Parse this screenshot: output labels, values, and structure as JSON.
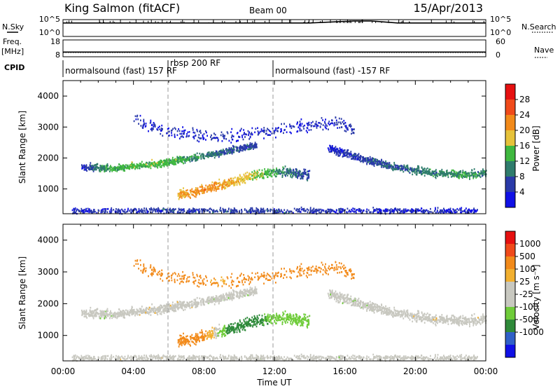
{
  "header": {
    "station": "King Salmon (fitACF)",
    "beam": "Beam 00",
    "date": "15/Apr/2013"
  },
  "strip_labels": {
    "nsky": "N.Sky",
    "nsearch": "N.Search",
    "freq_line1": "Freq.",
    "freq_line2": "[MHz]",
    "nave": "Nave",
    "cpid": "CPID"
  },
  "strip_ticks": {
    "noise_top_left": "10^5",
    "noise_bottom_left": "10^0",
    "noise_top_right": "10^5",
    "noise_bottom_right": "10^0",
    "freq_top": "18",
    "freq_bottom": "8",
    "nave_top": "60",
    "nave_bottom": "0"
  },
  "cpid_segments": [
    {
      "label": "normalsound (fast) 157 RF"
    },
    {
      "label": "rbsp 200 RF"
    },
    {
      "label": "normalsound (fast) -157 RF"
    }
  ],
  "time_axis": {
    "title": "Time UT",
    "ticks": [
      "00:00",
      "04:00",
      "08:00",
      "12:00",
      "16:00",
      "20:00",
      "00:00"
    ]
  },
  "range_axis": {
    "title": "Slant Range [km]",
    "ticks": [
      "1000",
      "2000",
      "3000",
      "4000"
    ]
  },
  "power_colorbar": {
    "title": "Power [dB]",
    "labels": [
      "4",
      "8",
      "12",
      "16",
      "20",
      "24",
      "28"
    ],
    "colors": [
      "#1010e6",
      "#2a3aa8",
      "#2f7c6c",
      "#3fb83f",
      "#e6c23a",
      "#f28a1a",
      "#f04a1a",
      "#e61010"
    ]
  },
  "velocity_colorbar": {
    "title": "Velocity [m s⁻¹]",
    "labels": [
      "1000",
      "500",
      "100",
      "25",
      "-25",
      "-100",
      "-500",
      "-1000"
    ],
    "colors": [
      "#1010e6",
      "#3060c8",
      "#2f8a3a",
      "#6fcc3a",
      "#c8c8c0",
      "#c8c8c0",
      "#f2b030",
      "#f28a1a",
      "#f04a1a",
      "#e61010"
    ]
  },
  "chart_data": [
    {
      "type": "line",
      "title": "King Salmon (fitACF)",
      "subtitle": "Beam 00",
      "xlabel": "",
      "ylabel": "",
      "x_range": [
        "00:00",
        "24:00"
      ],
      "series": [
        {
          "name": "N.Sky",
          "scale": "log",
          "ylim": [
            "10^0",
            "10^5"
          ],
          "points": [
            [
              "00:00",
              10000
            ],
            [
              "14:00",
              10000
            ],
            [
              "16:30",
              40000
            ],
            [
              "17:30",
              40000
            ],
            [
              "19:00",
              10000
            ],
            [
              "24:00",
              10000
            ]
          ]
        },
        {
          "name": "N.Search",
          "scale": "log",
          "ylim": [
            "10^0",
            "10^5"
          ],
          "points": [
            [
              "00:00",
              1
            ],
            [
              "24:00",
              1
            ]
          ]
        }
      ]
    },
    {
      "type": "line",
      "x_range": [
        "00:00",
        "24:00"
      ],
      "series": [
        {
          "name": "Freq. [MHz]",
          "ylim": [
            8,
            18
          ],
          "points": [
            [
              "00:00",
              10.8
            ],
            [
              "24:00",
              10.8
            ]
          ]
        },
        {
          "name": "Nave",
          "ylim": [
            0,
            60
          ],
          "points": [
            [
              "00:00",
              15
            ],
            [
              "24:00",
              15
            ]
          ]
        }
      ]
    },
    {
      "type": "heatmap",
      "title": "Power [dB]",
      "xlabel": "Time UT",
      "ylabel": "Slant Range [km]",
      "x_range": [
        "00:00",
        "24:00"
      ],
      "ylim": [
        200,
        4500
      ],
      "color_range": [
        0,
        30
      ],
      "regions": [
        {
          "name": "band A",
          "points": [
            [
              1.0,
              1750,
              4
            ],
            [
              2.5,
              1700,
              12
            ],
            [
              4.0,
              1750,
              14
            ],
            [
              5.5,
              1850,
              14
            ],
            [
              7.0,
              2000,
              12
            ],
            [
              9.0,
              2200,
              8
            ],
            [
              11.0,
              2450,
              6
            ]
          ],
          "width_km": 160
        },
        {
          "name": "band B",
          "points": [
            [
              6.5,
              820,
              20
            ],
            [
              8.0,
              1000,
              22
            ],
            [
              9.5,
              1250,
              20
            ],
            [
              11.0,
              1500,
              16
            ],
            [
              12.5,
              1600,
              10
            ],
            [
              14.0,
              1450,
              6
            ]
          ],
          "width_km": 220
        },
        {
          "name": "band C",
          "points": [
            [
              15.0,
              2350,
              4
            ],
            [
              17.0,
              2000,
              6
            ],
            [
              19.0,
              1700,
              8
            ],
            [
              21.0,
              1550,
              10
            ],
            [
              23.0,
              1500,
              12
            ],
            [
              24.0,
              1550,
              10
            ]
          ],
          "width_km": 180
        },
        {
          "name": "upper echoes",
          "points": [
            [
              4.0,
              3300,
              4
            ],
            [
              5.5,
              2900,
              4
            ],
            [
              9.0,
              2700,
              4
            ],
            [
              15.5,
              3200,
              4
            ],
            [
              16.5,
              2900,
              6
            ]
          ],
          "width_km": 300
        },
        {
          "name": "ground clutter",
          "points": [
            [
              0.5,
              320,
              4
            ],
            [
              6.0,
              320,
              6
            ],
            [
              12.0,
              320,
              6
            ],
            [
              18.0,
              320,
              4
            ],
            [
              23.5,
              320,
              4
            ]
          ],
          "width_km": 120
        }
      ]
    },
    {
      "type": "heatmap",
      "title": "Velocity [m s⁻¹]",
      "xlabel": "Time UT",
      "ylabel": "Slant Range [km]",
      "x_range": [
        "00:00",
        "24:00"
      ],
      "ylim": [
        200,
        4500
      ],
      "color_range": [
        -1000,
        1000
      ],
      "regions": [
        {
          "name": "band A",
          "points": [
            [
              1.0,
              1750,
              0
            ],
            [
              2.5,
              1700,
              10
            ],
            [
              4.0,
              1750,
              0
            ],
            [
              5.5,
              1850,
              -10
            ],
            [
              7.0,
              2000,
              0
            ],
            [
              9.0,
              2200,
              10
            ],
            [
              11.0,
              2450,
              0
            ]
          ],
          "width_km": 200
        },
        {
          "name": "band B",
          "points": [
            [
              6.5,
              820,
              -150
            ],
            [
              8.0,
              1000,
              -120
            ],
            [
              9.5,
              1250,
              150
            ],
            [
              11.0,
              1500,
              120
            ],
            [
              12.5,
              1600,
              60
            ],
            [
              14.0,
              1450,
              40
            ]
          ],
          "width_km": 260
        },
        {
          "name": "band C",
          "points": [
            [
              15.0,
              2350,
              0
            ],
            [
              17.0,
              2000,
              10
            ],
            [
              19.0,
              1700,
              0
            ],
            [
              21.0,
              1550,
              -10
            ],
            [
              23.0,
              1500,
              0
            ],
            [
              24.0,
              1550,
              0
            ]
          ],
          "width_km": 220
        },
        {
          "name": "upper echoes",
          "points": [
            [
              4.0,
              3300,
              -200
            ],
            [
              5.5,
              2900,
              -150
            ],
            [
              9.0,
              2700,
              -100
            ],
            [
              15.5,
              3200,
              -300
            ],
            [
              16.5,
              2900,
              -200
            ]
          ],
          "width_km": 300
        },
        {
          "name": "ground clutter",
          "points": [
            [
              0.5,
              320,
              0
            ],
            [
              6.0,
              320,
              0
            ],
            [
              12.0,
              320,
              0
            ],
            [
              18.0,
              320,
              0
            ],
            [
              23.5,
              320,
              0
            ]
          ],
          "width_km": 120
        }
      ]
    }
  ]
}
